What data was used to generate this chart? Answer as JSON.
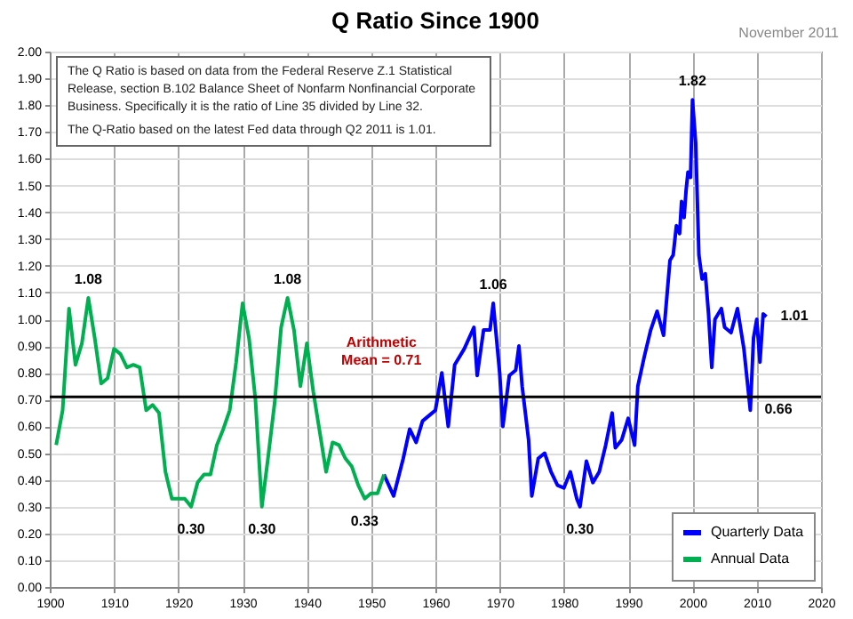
{
  "chart_data": {
    "type": "line",
    "title": "Q Ratio Since 1900",
    "subtitle": "November 2011",
    "xlim": [
      1900,
      2020
    ],
    "xticks": [
      1900,
      1910,
      1920,
      1930,
      1940,
      1950,
      1960,
      1970,
      1980,
      1990,
      2000,
      2010,
      2020
    ],
    "ylim": [
      0,
      2
    ],
    "yticks": [
      {
        "value": 0,
        "label": "0.00"
      },
      {
        "value": 0.1,
        "label": "0.10"
      },
      {
        "value": 0.2,
        "label": "0.20"
      },
      {
        "value": 0.3,
        "label": "0.30"
      },
      {
        "value": 0.4,
        "label": "0.40"
      },
      {
        "value": 0.5,
        "label": "0.50"
      },
      {
        "value": 0.6,
        "label": "0.60"
      },
      {
        "value": 0.7,
        "label": "0.70"
      },
      {
        "value": 0.8,
        "label": "0.80"
      },
      {
        "value": 0.9,
        "label": "0.90"
      },
      {
        "value": 1,
        "label": "1.00"
      },
      {
        "value": 1.1,
        "label": "1.10"
      },
      {
        "value": 1.2,
        "label": "1.20"
      },
      {
        "value": 1.3,
        "label": "1.30"
      },
      {
        "value": 1.4,
        "label": "1.40"
      },
      {
        "value": 1.5,
        "label": "1.50"
      },
      {
        "value": 1.6,
        "label": "1.60"
      },
      {
        "value": 1.7,
        "label": "1.70"
      },
      {
        "value": 1.8,
        "label": "1.80"
      },
      {
        "value": 1.9,
        "label": "1.90"
      },
      {
        "value": 2,
        "label": "2.00"
      }
    ],
    "grid": true,
    "legend": "bottom right",
    "series": [
      {
        "name": "Quarterly Data",
        "color": "#0000ff",
        "x": [
          1952,
          1953.5,
          1955,
          1956,
          1957,
          1958,
          1960,
          1961,
          1962,
          1963,
          1964.5,
          1966,
          1966.5,
          1967.5,
          1968.5,
          1969,
          1970,
          1970.5,
          1971.5,
          1972.5,
          1973,
          1973.5,
          1974.5,
          1975,
          1976,
          1977,
          1978,
          1979,
          1980,
          1981,
          1982,
          1982.5,
          1983.5,
          1984.5,
          1985.5,
          1986.5,
          1987.5,
          1988,
          1989,
          1990,
          1991,
          1991.5,
          1992.5,
          1993.5,
          1994.5,
          1995.5,
          1996.5,
          1997,
          1997.5,
          1998,
          1998.3,
          1998.7,
          1999,
          1999.3,
          1999.7,
          2000,
          2000.5,
          2001,
          2001.5,
          2002,
          2002.5,
          2003,
          2003.5,
          2004.5,
          2005,
          2006,
          2007,
          2008,
          2009,
          2009.5,
          2010,
          2010.5,
          2011,
          2011.5
        ],
        "values": [
          0.42,
          0.34,
          0.48,
          0.59,
          0.54,
          0.62,
          0.66,
          0.8,
          0.6,
          0.83,
          0.89,
          0.97,
          0.79,
          0.96,
          0.96,
          1.06,
          0.8,
          0.6,
          0.79,
          0.81,
          0.9,
          0.75,
          0.55,
          0.34,
          0.48,
          0.5,
          0.43,
          0.38,
          0.37,
          0.43,
          0.33,
          0.3,
          0.47,
          0.39,
          0.43,
          0.53,
          0.65,
          0.52,
          0.55,
          0.63,
          0.53,
          0.75,
          0.86,
          0.96,
          1.03,
          0.94,
          1.22,
          1.24,
          1.35,
          1.32,
          1.44,
          1.38,
          1.48,
          1.55,
          1.53,
          1.82,
          1.66,
          1.24,
          1.15,
          1.17,
          1.02,
          0.82,
          1.0,
          1.04,
          0.97,
          0.95,
          1.04,
          0.89,
          0.66,
          0.93,
          1.0,
          0.84,
          1.02,
          1.01
        ]
      },
      {
        "name": "Annual Data",
        "color": "#00b050",
        "x": [
          1901,
          1902,
          1903,
          1904,
          1905,
          1906,
          1907,
          1908,
          1909,
          1910,
          1911,
          1912,
          1913,
          1914,
          1915,
          1916,
          1917,
          1918,
          1919,
          1920,
          1921,
          1922,
          1923,
          1924,
          1925,
          1926,
          1927,
          1928,
          1929,
          1930,
          1931,
          1932,
          1933,
          1934,
          1935,
          1936,
          1937,
          1938,
          1939,
          1940,
          1941,
          1942,
          1943,
          1944,
          1945,
          1946,
          1947,
          1948,
          1949,
          1950,
          1951,
          1952
        ],
        "values": [
          0.53,
          0.66,
          1.04,
          0.83,
          0.91,
          1.08,
          0.93,
          0.76,
          0.78,
          0.89,
          0.87,
          0.82,
          0.83,
          0.82,
          0.66,
          0.68,
          0.65,
          0.43,
          0.33,
          0.33,
          0.33,
          0.3,
          0.39,
          0.42,
          0.42,
          0.53,
          0.59,
          0.66,
          0.84,
          1.06,
          0.93,
          0.7,
          0.3,
          0.49,
          0.69,
          0.97,
          1.08,
          0.96,
          0.75,
          0.91,
          0.73,
          0.58,
          0.43,
          0.54,
          0.53,
          0.48,
          0.45,
          0.38,
          0.33,
          0.35,
          0.35,
          0.42
        ]
      }
    ],
    "ref_lines": [
      {
        "axis": "y",
        "value": 0.71,
        "label": "Arithmetic Mean = 0.71",
        "color": "#000000"
      }
    ],
    "annotations": [
      "The Q Ratio is based on data from the Federal Reserve Z.1 Statistical Release, section B.102 Balance Sheet of Nonfarm Nonfinancial Corporate Business. Specifically it is the ratio of Line 35 divided by Line 32.",
      "The Q-Ratio based on the latest Fed data through Q2 2011  is 1.01.",
      {
        "text": "1.08",
        "x": 1906,
        "y": 1.08
      },
      {
        "text": "1.08",
        "x": 1937,
        "y": 1.08
      },
      {
        "text": "0.30",
        "x": 1922,
        "y": 0.3
      },
      {
        "text": "0.30",
        "x": 1933,
        "y": 0.3
      },
      {
        "text": "0.33",
        "x": 1949,
        "y": 0.33
      },
      {
        "text": "1.06",
        "x": 1969,
        "y": 1.06
      },
      {
        "text": "0.30",
        "x": 1982.5,
        "y": 0.3
      },
      {
        "text": "1.82",
        "x": 2000,
        "y": 1.82
      },
      {
        "text": "0.66",
        "x": 2009,
        "y": 0.66
      },
      {
        "text": "1.01",
        "x": 2011.5,
        "y": 1.01
      }
    ]
  }
}
